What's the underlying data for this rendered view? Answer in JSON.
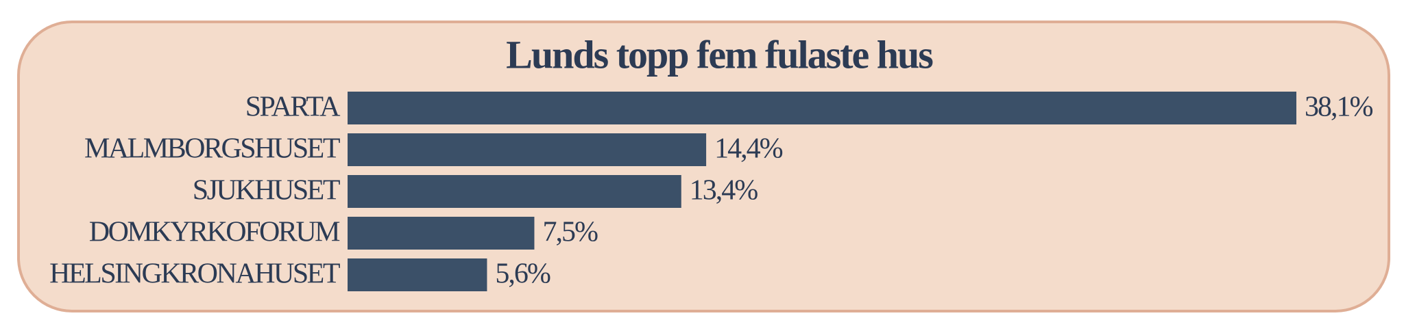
{
  "chart_data": {
    "type": "hbar",
    "title": "Lunds topp fem fulaste hus",
    "categories": [
      "SPARTA",
      "MALMBORGSHUSET",
      "SJUKHUSET",
      "DOMKYRKOFORUM",
      "HELSINGKRONAHUSET"
    ],
    "values": [
      38.1,
      14.4,
      13.4,
      7.5,
      5.6
    ],
    "value_labels": [
      "38,1%",
      "14,4%",
      "13,4%",
      "7,5%",
      "5,6%"
    ],
    "color": "#3b5068"
  }
}
